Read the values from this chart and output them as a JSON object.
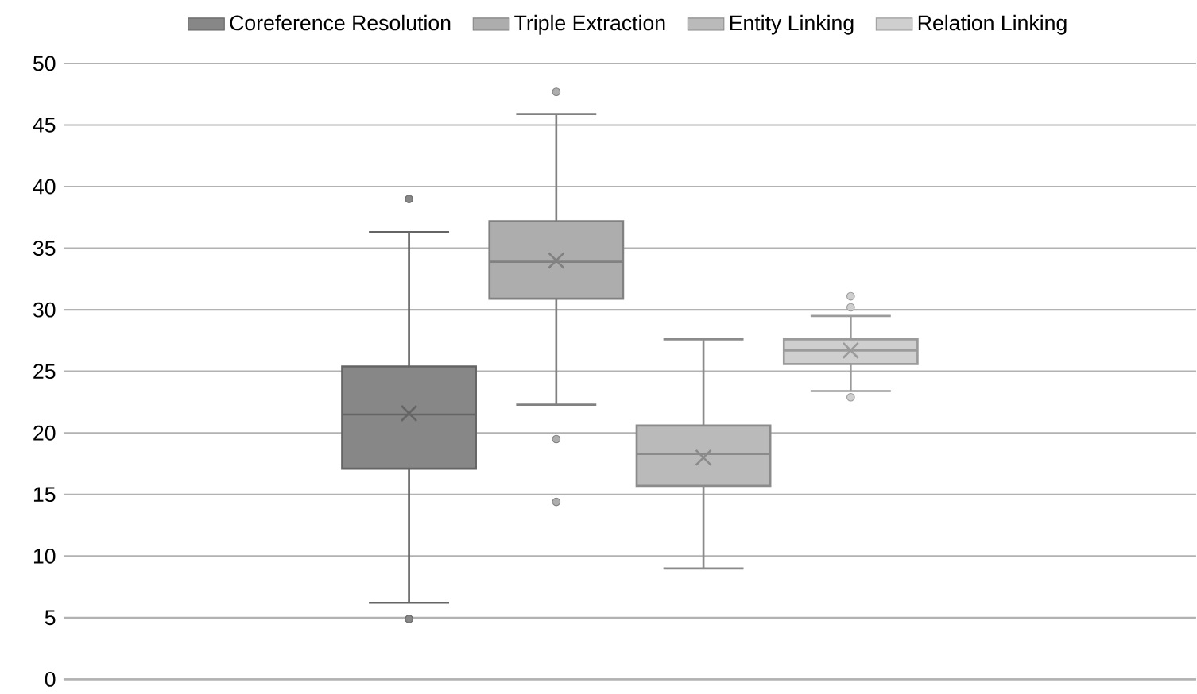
{
  "chart_data": {
    "type": "box",
    "categories": [
      null
    ],
    "ylim": [
      0,
      50
    ],
    "yticks": [
      0,
      5,
      10,
      15,
      20,
      25,
      30,
      35,
      40,
      45,
      50
    ],
    "grid": "y",
    "legend": "top",
    "tick_labels": "y",
    "series": [
      {
        "name": "Coreference Resolution",
        "color": "#878787",
        "boxes": [
          {
            "low": 6.2,
            "q1": 17.1,
            "median": 21.5,
            "q3": 25.4,
            "high": 36.3,
            "mean": 21.6,
            "outliers": [
              39,
              4.9
            ]
          }
        ]
      },
      {
        "name": "Triple Extraction",
        "color": "#adadad",
        "boxes": [
          {
            "low": 22.3,
            "q1": 30.9,
            "median": 33.9,
            "q3": 37.2,
            "high": 45.9,
            "mean": 34,
            "outliers": [
              47.7,
              19.5,
              14.4
            ]
          }
        ]
      },
      {
        "name": "Entity Linking",
        "color": "#bababa",
        "boxes": [
          {
            "low": 9,
            "q1": 15.7,
            "median": 18.3,
            "q3": 20.6,
            "high": 27.6,
            "mean": 18
          }
        ]
      },
      {
        "name": "Relation Linking",
        "color": "#cfcfcf",
        "boxes": [
          {
            "low": 23.4,
            "q1": 25.6,
            "median": 26.7,
            "q3": 27.6,
            "high": 29.5,
            "mean": 26.7,
            "outliers": [
              31.1,
              30.2,
              22.9
            ]
          }
        ]
      }
    ]
  }
}
